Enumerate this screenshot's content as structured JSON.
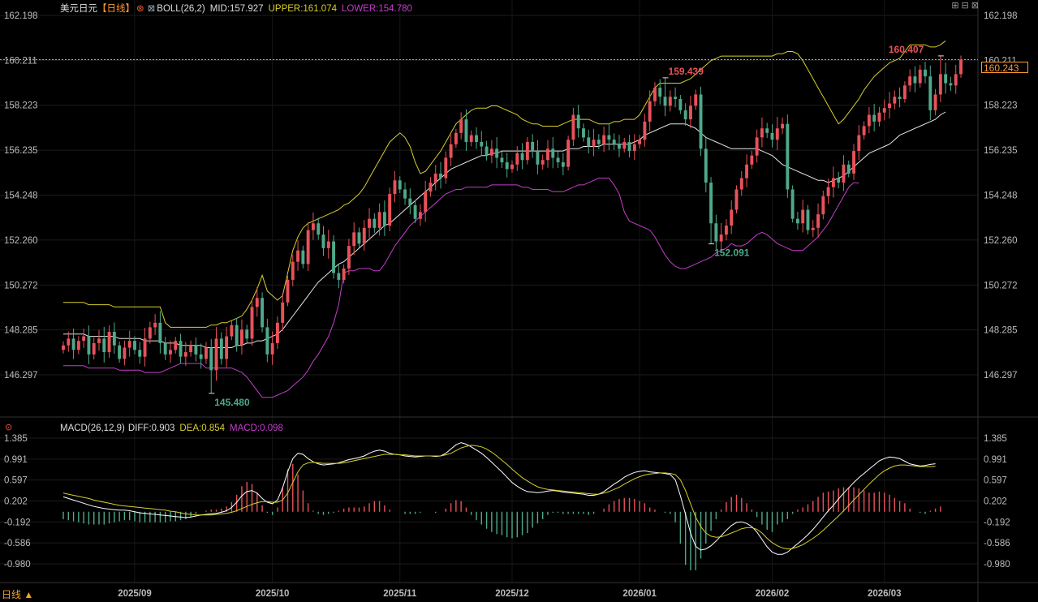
{
  "header": {
    "symbol": "美元日元",
    "period_tag": "【日线】",
    "boll_label": "BOLL(26,2)",
    "mid": "MID:157.927",
    "upper": "UPPER:161.074",
    "lower": "LOWER:154.780"
  },
  "macd_header": {
    "label": "MACD(26,12,9)",
    "diff": "DIFF:0.903",
    "dea": "DEA:0.854",
    "macd": "MACD:0.098"
  },
  "current_price_tag": "160.243",
  "period_button": "日线 ▲",
  "window_buttons": "⊞⊟⊠",
  "colors": {
    "up": "#e8525a",
    "down": "#4ea98a",
    "mid": "#e6e6e6",
    "upper": "#d8cf2a",
    "lower": "#c33ec9",
    "diff": "#ffffff",
    "dea": "#d8cf2a",
    "accent": "#ff9933"
  },
  "chart_data": [
    {
      "type": "candlestick",
      "title": "美元日元 日线 BOLL(26,2)",
      "y_ticks": [
        "162.198",
        "160.211",
        "158.223",
        "156.235",
        "154.248",
        "152.260",
        "150.272",
        "148.285",
        "146.297"
      ],
      "ylim": [
        145.0,
        162.6
      ],
      "x_ticks": [
        "2025/09",
        "2025/10",
        "2025/11",
        "2025/12",
        "2026/01",
        "2026/02",
        "2026/03"
      ],
      "x_tick_bar_index": [
        14,
        41,
        66,
        88,
        113,
        139,
        161
      ],
      "annotations": [
        {
          "label": "145.480",
          "bar": 29,
          "price": 145.48,
          "type": "low"
        },
        {
          "label": "159.439",
          "bar": 118,
          "price": 159.439,
          "type": "high"
        },
        {
          "label": "152.091",
          "bar": 127,
          "price": 152.091,
          "type": "low"
        },
        {
          "label": "160.407",
          "bar": 172,
          "price": 160.407,
          "type": "high"
        }
      ],
      "reference_line": 160.243,
      "close": [
        147.6,
        147.9,
        147.4,
        147.8,
        148.0,
        147.2,
        147.7,
        147.9,
        147.3,
        148.2,
        147.6,
        147.0,
        147.5,
        147.8,
        147.4,
        147.1,
        147.9,
        148.4,
        148.6,
        147.7,
        147.2,
        147.4,
        147.8,
        147.1,
        147.3,
        147.6,
        147.2,
        147.0,
        147.5,
        146.5,
        147.9,
        147.0,
        148.0,
        148.5,
        147.6,
        148.3,
        147.9,
        149.3,
        149.7,
        148.4,
        147.2,
        147.7,
        148.6,
        149.5,
        150.5,
        151.3,
        151.8,
        151.2,
        152.7,
        153.0,
        152.5,
        151.9,
        152.2,
        150.8,
        150.5,
        151.0,
        152.0,
        152.6,
        152.1,
        152.8,
        153.2,
        152.8,
        153.5,
        152.9,
        154.3,
        154.9,
        154.5,
        154.1,
        153.8,
        153.2,
        153.5,
        154.4,
        154.8,
        155.2,
        155.0,
        155.9,
        156.5,
        157.0,
        157.6,
        156.6,
        156.9,
        156.6,
        156.4,
        156.0,
        156.3,
        155.9,
        155.7,
        155.4,
        155.6,
        156.1,
        155.8,
        156.6,
        156.2,
        155.6,
        155.8,
        156.3,
        155.9,
        155.7,
        155.5,
        156.7,
        157.8,
        157.2,
        156.8,
        156.4,
        156.7,
        156.5,
        156.9,
        156.7,
        156.5,
        156.3,
        156.6,
        156.2,
        156.5,
        156.7,
        157.5,
        158.4,
        159.0,
        158.6,
        158.2,
        158.6,
        158.5,
        158.0,
        157.6,
        158.2,
        158.7,
        156.3,
        154.8,
        153.0,
        152.2,
        152.5,
        152.9,
        153.6,
        154.5,
        155.0,
        155.6,
        156.0,
        156.8,
        157.2,
        157.0,
        156.7,
        157.2,
        157.4,
        154.5,
        153.2,
        153.0,
        153.6,
        152.7,
        152.8,
        153.4,
        154.2,
        154.6,
        155.0,
        154.8,
        155.6,
        155.2,
        156.2,
        156.9,
        157.3,
        157.8,
        157.5,
        157.9,
        158.1,
        158.3,
        158.6,
        158.5,
        159.1,
        159.5,
        159.2,
        159.8,
        159.5,
        158.0,
        158.7,
        159.6,
        159.2,
        159.1,
        159.6,
        160.243
      ],
      "boll_mid": [
        148.1,
        148.1,
        148.1,
        148.1,
        148.1,
        148.0,
        148.0,
        148.0,
        148.0,
        148.0,
        148.0,
        147.9,
        147.9,
        147.9,
        147.9,
        147.9,
        147.8,
        147.8,
        147.8,
        147.8,
        147.7,
        147.7,
        147.7,
        147.6,
        147.6,
        147.6,
        147.6,
        147.6,
        147.5,
        147.5,
        147.5,
        147.5,
        147.5,
        147.5,
        147.6,
        147.6,
        147.7,
        147.7,
        147.8,
        147.8,
        147.9,
        148.0,
        148.1,
        148.3,
        148.6,
        148.9,
        149.2,
        149.5,
        149.8,
        150.1,
        150.4,
        150.6,
        150.8,
        151.0,
        151.2,
        151.3,
        151.5,
        151.7,
        151.9,
        152.1,
        152.3,
        152.5,
        152.7,
        152.9,
        153.0,
        153.2,
        153.4,
        153.6,
        153.8,
        154.0,
        154.2,
        154.4,
        154.6,
        154.8,
        155.0,
        155.2,
        155.4,
        155.5,
        155.6,
        155.7,
        155.8,
        155.9,
        156.0,
        156.0,
        156.1,
        156.1,
        156.2,
        156.2,
        156.2,
        156.2,
        156.2,
        156.2,
        156.2,
        156.2,
        156.2,
        156.2,
        156.2,
        156.2,
        156.2,
        156.3,
        156.3,
        156.3,
        156.4,
        156.4,
        156.4,
        156.4,
        156.5,
        156.5,
        156.5,
        156.5,
        156.5,
        156.5,
        156.6,
        156.7,
        156.9,
        157.0,
        157.1,
        157.2,
        157.3,
        157.4,
        157.4,
        157.4,
        157.4,
        157.3,
        157.2,
        157.0,
        156.8,
        156.7,
        156.6,
        156.5,
        156.4,
        156.3,
        156.3,
        156.3,
        156.3,
        156.3,
        156.3,
        156.2,
        156.1,
        156.0,
        155.8,
        155.6,
        155.5,
        155.4,
        155.3,
        155.2,
        155.1,
        155.0,
        154.9,
        154.9,
        154.8,
        154.9,
        155.0,
        155.1,
        155.3,
        155.5,
        155.7,
        155.9,
        156.1,
        156.2,
        156.3,
        156.4,
        156.5,
        156.7,
        156.9,
        157.0,
        157.1,
        157.2,
        157.3,
        157.4,
        157.5,
        157.6,
        157.8,
        157.927
      ],
      "boll_upper": [
        149.5,
        149.5,
        149.5,
        149.5,
        149.5,
        149.4,
        149.4,
        149.4,
        149.4,
        149.4,
        149.3,
        149.3,
        149.3,
        149.3,
        149.3,
        149.3,
        149.3,
        149.3,
        149.3,
        149.3,
        148.6,
        148.4,
        148.4,
        148.4,
        148.4,
        148.4,
        148.4,
        148.4,
        148.4,
        148.5,
        148.5,
        148.6,
        148.6,
        148.7,
        148.8,
        148.9,
        149.2,
        149.6,
        150.1,
        150.7,
        150.0,
        149.8,
        149.6,
        149.8,
        150.8,
        151.8,
        152.4,
        152.8,
        153.0,
        153.1,
        153.2,
        153.3,
        153.4,
        153.5,
        153.6,
        153.8,
        153.9,
        154.1,
        154.3,
        154.6,
        155.0,
        155.4,
        155.8,
        156.2,
        156.6,
        156.8,
        157.0,
        156.8,
        156.4,
        155.7,
        155.2,
        155.3,
        155.6,
        155.9,
        156.2,
        156.6,
        157.0,
        157.4,
        157.6,
        157.8,
        158.0,
        158.1,
        158.1,
        158.1,
        158.2,
        158.2,
        158.1,
        158.0,
        157.9,
        157.8,
        157.6,
        157.5,
        157.4,
        157.4,
        157.3,
        157.3,
        157.3,
        157.3,
        157.4,
        157.5,
        157.6,
        157.6,
        157.6,
        157.6,
        157.5,
        157.4,
        157.4,
        157.4,
        157.5,
        157.5,
        157.6,
        157.6,
        157.6,
        157.8,
        158.2,
        158.6,
        159.0,
        159.2,
        159.2,
        159.2,
        159.2,
        159.2,
        159.3,
        159.4,
        159.6,
        159.8,
        160.0,
        160.2,
        160.3,
        160.4,
        160.4,
        160.4,
        160.4,
        160.4,
        160.4,
        160.4,
        160.4,
        160.4,
        160.4,
        160.4,
        160.5,
        160.5,
        160.6,
        160.6,
        160.5,
        160.2,
        159.8,
        159.4,
        159.0,
        158.6,
        158.2,
        157.8,
        157.4,
        157.6,
        157.9,
        158.2,
        158.5,
        158.9,
        159.2,
        159.5,
        159.7,
        159.9,
        160.1,
        160.2,
        160.3,
        160.6,
        160.9,
        160.9,
        160.9,
        160.9,
        160.8,
        160.8,
        160.9,
        161.074
      ],
      "boll_lower": [
        146.7,
        146.7,
        146.7,
        146.7,
        146.7,
        146.6,
        146.6,
        146.6,
        146.6,
        146.6,
        146.6,
        146.5,
        146.5,
        146.5,
        146.5,
        146.5,
        146.4,
        146.4,
        146.4,
        146.4,
        146.5,
        146.6,
        146.7,
        146.8,
        146.8,
        146.8,
        146.8,
        146.8,
        146.6,
        146.6,
        146.6,
        146.6,
        146.6,
        146.6,
        146.5,
        146.4,
        146.2,
        145.9,
        145.6,
        145.3,
        145.3,
        145.3,
        145.4,
        145.5,
        145.6,
        145.8,
        146.0,
        146.2,
        146.5,
        146.9,
        147.2,
        147.6,
        148.0,
        148.6,
        149.4,
        150.8,
        150.9,
        150.9,
        151.0,
        151.0,
        151.0,
        150.9,
        150.9,
        151.2,
        151.6,
        152.0,
        152.3,
        152.6,
        152.9,
        153.1,
        153.3,
        153.5,
        153.7,
        153.9,
        154.1,
        154.3,
        154.4,
        154.5,
        154.5,
        154.6,
        154.6,
        154.6,
        154.6,
        154.6,
        154.7,
        154.7,
        154.7,
        154.7,
        154.7,
        154.7,
        154.6,
        154.6,
        154.5,
        154.5,
        154.5,
        154.5,
        154.4,
        154.4,
        154.4,
        154.5,
        154.6,
        154.7,
        154.7,
        154.8,
        154.9,
        155.0,
        155.0,
        155.0,
        154.7,
        154.3,
        153.5,
        153.1,
        153.0,
        152.9,
        152.8,
        152.7,
        152.4,
        152.0,
        151.6,
        151.3,
        151.1,
        151.0,
        151.0,
        151.1,
        151.2,
        151.3,
        151.4,
        151.5,
        151.7,
        151.8,
        151.9,
        152.1,
        152.0,
        152.0,
        152.1,
        152.3,
        152.5,
        152.6,
        152.5,
        152.3,
        152.1,
        152.0,
        151.9,
        151.8,
        151.8,
        151.8,
        152.0,
        152.2,
        152.4,
        152.7,
        153.0,
        153.4,
        153.8,
        154.2,
        154.6,
        154.8,
        154.78
      ]
    },
    {
      "type": "line+bar",
      "title": "MACD(26,12,9)",
      "y_ticks": [
        "1.385",
        "0.991",
        "0.597",
        "0.202",
        "-0.192",
        "-0.586",
        "-0.980"
      ],
      "ylim": [
        -1.5,
        1.5
      ],
      "diff": [
        0.28,
        0.25,
        0.22,
        0.19,
        0.16,
        0.13,
        0.1,
        0.08,
        0.06,
        0.05,
        0.04,
        0.03,
        0.03,
        0.02,
        0.0,
        -0.02,
        -0.03,
        -0.04,
        -0.05,
        -0.06,
        -0.07,
        -0.08,
        -0.09,
        -0.1,
        -0.11,
        -0.1,
        -0.08,
        -0.06,
        -0.05,
        -0.04,
        -0.03,
        -0.01,
        0.02,
        0.08,
        0.18,
        0.3,
        0.38,
        0.4,
        0.35,
        0.25,
        0.18,
        0.15,
        0.22,
        0.45,
        0.75,
        1.0,
        1.1,
        1.08,
        1.0,
        0.94,
        0.9,
        0.88,
        0.89,
        0.9,
        0.92,
        0.95,
        0.98,
        1.0,
        1.02,
        1.05,
        1.1,
        1.14,
        1.16,
        1.14,
        1.1,
        1.08,
        1.07,
        1.05,
        1.04,
        1.03,
        1.04,
        1.05,
        1.05,
        1.04,
        1.05,
        1.1,
        1.18,
        1.26,
        1.3,
        1.27,
        1.22,
        1.16,
        1.1,
        1.02,
        0.93,
        0.84,
        0.75,
        0.65,
        0.55,
        0.48,
        0.42,
        0.38,
        0.37,
        0.36,
        0.37,
        0.39,
        0.4,
        0.39,
        0.37,
        0.36,
        0.35,
        0.34,
        0.33,
        0.31,
        0.31,
        0.33,
        0.38,
        0.45,
        0.52,
        0.58,
        0.65,
        0.7,
        0.74,
        0.76,
        0.77,
        0.75,
        0.74,
        0.73,
        0.72,
        0.7,
        0.6,
        0.3,
        -0.05,
        -0.4,
        -0.65,
        -0.72,
        -0.7,
        -0.64,
        -0.55,
        -0.45,
        -0.35,
        -0.26,
        -0.2,
        -0.19,
        -0.22,
        -0.28,
        -0.38,
        -0.52,
        -0.66,
        -0.76,
        -0.8,
        -0.8,
        -0.76,
        -0.68,
        -0.6,
        -0.52,
        -0.43,
        -0.33,
        -0.22,
        -0.1,
        0.02,
        0.12,
        0.24,
        0.35,
        0.45,
        0.55,
        0.64,
        0.72,
        0.8,
        0.88,
        0.96,
        1.0,
        1.03,
        1.02,
        1.0,
        0.95,
        0.9,
        0.88,
        0.86,
        0.87,
        0.89,
        0.903
      ],
      "dea": [
        0.35,
        0.33,
        0.31,
        0.29,
        0.27,
        0.25,
        0.22,
        0.2,
        0.18,
        0.16,
        0.14,
        0.12,
        0.11,
        0.1,
        0.09,
        0.08,
        0.07,
        0.06,
        0.05,
        0.04,
        0.03,
        0.01,
        0.0,
        -0.02,
        -0.04,
        -0.05,
        -0.06,
        -0.06,
        -0.06,
        -0.06,
        -0.05,
        -0.04,
        -0.03,
        -0.01,
        0.02,
        0.06,
        0.1,
        0.14,
        0.17,
        0.19,
        0.19,
        0.18,
        0.18,
        0.22,
        0.35,
        0.55,
        0.75,
        0.88,
        0.92,
        0.93,
        0.92,
        0.91,
        0.91,
        0.91,
        0.91,
        0.92,
        0.94,
        0.96,
        0.98,
        1.0,
        1.02,
        1.04,
        1.06,
        1.08,
        1.08,
        1.08,
        1.07,
        1.07,
        1.06,
        1.05,
        1.05,
        1.05,
        1.05,
        1.05,
        1.05,
        1.07,
        1.1,
        1.15,
        1.2,
        1.23,
        1.25,
        1.24,
        1.22,
        1.18,
        1.12,
        1.05,
        0.97,
        0.89,
        0.8,
        0.72,
        0.64,
        0.58,
        0.52,
        0.47,
        0.44,
        0.42,
        0.41,
        0.4,
        0.39,
        0.38,
        0.37,
        0.36,
        0.35,
        0.34,
        0.33,
        0.33,
        0.35,
        0.38,
        0.42,
        0.46,
        0.52,
        0.57,
        0.62,
        0.66,
        0.69,
        0.71,
        0.72,
        0.73,
        0.73,
        0.72,
        0.7,
        0.6,
        0.4,
        0.15,
        -0.1,
        -0.28,
        -0.4,
        -0.46,
        -0.48,
        -0.47,
        -0.44,
        -0.4,
        -0.36,
        -0.32,
        -0.3,
        -0.3,
        -0.33,
        -0.4,
        -0.5,
        -0.58,
        -0.64,
        -0.68,
        -0.7,
        -0.69,
        -0.66,
        -0.62,
        -0.56,
        -0.5,
        -0.43,
        -0.35,
        -0.26,
        -0.17,
        -0.08,
        0.02,
        0.12,
        0.22,
        0.32,
        0.42,
        0.52,
        0.61,
        0.7,
        0.77,
        0.82,
        0.86,
        0.88,
        0.88,
        0.87,
        0.86,
        0.85,
        0.85,
        0.85,
        0.854
      ],
      "macd_hist": [
        -0.14,
        -0.16,
        -0.18,
        -0.2,
        -0.22,
        -0.24,
        -0.24,
        -0.24,
        -0.24,
        -0.22,
        -0.2,
        -0.18,
        -0.16,
        -0.16,
        -0.18,
        -0.2,
        -0.2,
        -0.2,
        -0.2,
        -0.2,
        -0.2,
        -0.18,
        -0.18,
        -0.16,
        -0.14,
        -0.1,
        -0.04,
        0.0,
        0.02,
        0.04,
        0.04,
        0.06,
        0.1,
        0.18,
        0.32,
        0.48,
        0.56,
        0.52,
        0.36,
        0.12,
        -0.02,
        -0.06,
        0.08,
        0.46,
        0.8,
        0.9,
        0.7,
        0.4,
        0.16,
        0.02,
        -0.04,
        -0.06,
        -0.04,
        -0.02,
        0.02,
        0.06,
        0.08,
        0.08,
        0.08,
        0.1,
        0.16,
        0.2,
        0.2,
        0.12,
        0.04,
        0.0,
        0.0,
        -0.04,
        -0.04,
        -0.04,
        -0.02,
        0.0,
        0.0,
        -0.02,
        0.0,
        0.06,
        0.16,
        0.22,
        0.2,
        0.08,
        -0.06,
        -0.16,
        -0.24,
        -0.32,
        -0.38,
        -0.42,
        -0.44,
        -0.48,
        -0.5,
        -0.48,
        -0.44,
        -0.4,
        -0.3,
        -0.22,
        -0.14,
        -0.06,
        -0.02,
        -0.02,
        -0.04,
        -0.04,
        -0.04,
        -0.04,
        -0.04,
        -0.06,
        -0.04,
        0.0,
        0.06,
        0.14,
        0.2,
        0.24,
        0.26,
        0.26,
        0.24,
        0.2,
        0.16,
        0.08,
        0.04,
        0.0,
        -0.02,
        -0.04,
        -0.2,
        -0.6,
        -1.0,
        -1.1,
        -1.1,
        -0.88,
        -0.6,
        -0.36,
        -0.14,
        0.04,
        0.18,
        0.28,
        0.32,
        0.26,
        0.16,
        0.04,
        -0.1,
        -0.24,
        -0.34,
        -0.38,
        -0.24,
        -0.2,
        -0.14,
        -0.04,
        0.04,
        0.08,
        0.14,
        0.2,
        0.28,
        0.36,
        0.38,
        0.4,
        0.44,
        0.46,
        0.46,
        0.46,
        0.44,
        0.4,
        0.36,
        0.36,
        0.38,
        0.36,
        0.32,
        0.26,
        0.2,
        0.16,
        0.06,
        0.0,
        -0.02,
        -0.04,
        0.02,
        0.06,
        0.098
      ]
    }
  ]
}
